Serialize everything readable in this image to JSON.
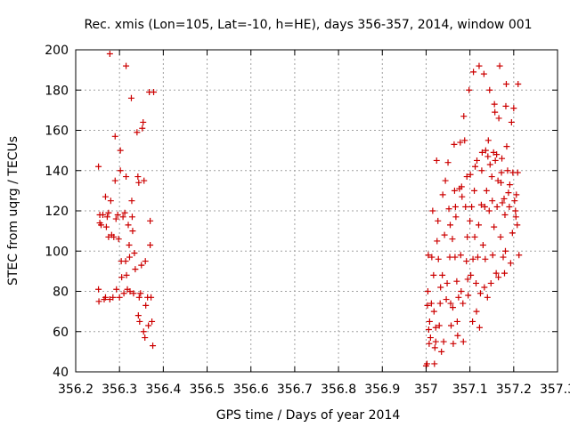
{
  "chart_data": {
    "type": "scatter",
    "title": "Rec. xmis (Lon=105, Lat=-10, h=HE), days 356-357, 2014, window 001",
    "xlabel": "GPS time / Days of year 2014",
    "ylabel": "STEC from uqrg / TECUs",
    "xlim": [
      356.2,
      357.3
    ],
    "ylim": [
      40,
      200
    ],
    "xticks": [
      356.2,
      356.3,
      356.4,
      356.5,
      356.6,
      356.7,
      356.8,
      356.9,
      357,
      357.1,
      357.2,
      357.3
    ],
    "xtick_labels": [
      "356.2",
      "356.3",
      "356.4",
      "356.5",
      "356.6",
      "356.7",
      "356.8",
      "356.9",
      "357",
      "357.1",
      "357.2",
      "357.3"
    ],
    "yticks": [
      40,
      60,
      80,
      100,
      120,
      140,
      160,
      180,
      200
    ],
    "ytick_labels": [
      "40",
      "60",
      "80",
      "100",
      "120",
      "140",
      "160",
      "180",
      "200"
    ],
    "grid": true,
    "marker": "+",
    "color": "#cc0000",
    "series": [
      {
        "points": [
          [
            356.252,
            142
          ],
          [
            356.252,
            81
          ],
          [
            356.253,
            75
          ],
          [
            356.255,
            118
          ],
          [
            356.255,
            114
          ],
          [
            356.258,
            113
          ],
          [
            356.262,
            118
          ],
          [
            356.265,
            76
          ],
          [
            356.268,
            77
          ],
          [
            356.268,
            127
          ],
          [
            356.27,
            112
          ],
          [
            356.272,
            117
          ],
          [
            356.275,
            119
          ],
          [
            356.275,
            107
          ],
          [
            356.278,
            198
          ],
          [
            356.278,
            76
          ],
          [
            356.28,
            125
          ],
          [
            356.282,
            108
          ],
          [
            356.285,
            77
          ],
          [
            356.287,
            107
          ],
          [
            356.29,
            157
          ],
          [
            356.29,
            135
          ],
          [
            356.292,
            116
          ],
          [
            356.293,
            81
          ],
          [
            356.296,
            118
          ],
          [
            356.298,
            106
          ],
          [
            356.3,
            77
          ],
          [
            356.302,
            150
          ],
          [
            356.302,
            140
          ],
          [
            356.304,
            95
          ],
          [
            356.305,
            87
          ],
          [
            356.308,
            117
          ],
          [
            356.31,
            79
          ],
          [
            356.312,
            119
          ],
          [
            356.314,
            95
          ],
          [
            356.315,
            192
          ],
          [
            356.315,
            137
          ],
          [
            356.316,
            88
          ],
          [
            356.318,
            81
          ],
          [
            356.32,
            113
          ],
          [
            356.322,
            103
          ],
          [
            356.323,
            97
          ],
          [
            356.324,
            80
          ],
          [
            356.327,
            176
          ],
          [
            356.328,
            125
          ],
          [
            356.329,
            117
          ],
          [
            356.33,
            110
          ],
          [
            356.332,
            79
          ],
          [
            356.334,
            99
          ],
          [
            356.336,
            91
          ],
          [
            356.34,
            159
          ],
          [
            356.342,
            137
          ],
          [
            356.343,
            68
          ],
          [
            356.344,
            134
          ],
          [
            356.345,
            77
          ],
          [
            356.346,
            65
          ],
          [
            356.348,
            79
          ],
          [
            356.35,
            93
          ],
          [
            356.352,
            161
          ],
          [
            356.354,
            164
          ],
          [
            356.355,
            60
          ],
          [
            356.356,
            135
          ],
          [
            356.358,
            57
          ],
          [
            356.359,
            95
          ],
          [
            356.36,
            73
          ],
          [
            356.364,
            77
          ],
          [
            356.366,
            63
          ],
          [
            356.368,
            179
          ],
          [
            356.37,
            115
          ],
          [
            356.37,
            103
          ],
          [
            356.372,
            77
          ],
          [
            356.374,
            65
          ],
          [
            356.376,
            53
          ],
          [
            356.378,
            179
          ],
          [
            357.0,
            43
          ],
          [
            357.002,
            44
          ],
          [
            357.003,
            73
          ],
          [
            357.004,
            80
          ],
          [
            357.005,
            98
          ],
          [
            357.006,
            61
          ],
          [
            357.007,
            54
          ],
          [
            357.008,
            65
          ],
          [
            357.01,
            57
          ],
          [
            357.012,
            74
          ],
          [
            357.013,
            97
          ],
          [
            357.015,
            120
          ],
          [
            357.017,
            88
          ],
          [
            357.018,
            70
          ],
          [
            357.019,
            44
          ],
          [
            357.02,
            52
          ],
          [
            357.022,
            55
          ],
          [
            357.022,
            62
          ],
          [
            357.024,
            145
          ],
          [
            357.025,
            105
          ],
          [
            357.027,
            115
          ],
          [
            357.028,
            96
          ],
          [
            357.03,
            63
          ],
          [
            357.032,
            74
          ],
          [
            357.033,
            82
          ],
          [
            357.035,
            50
          ],
          [
            357.037,
            88
          ],
          [
            357.038,
            128
          ],
          [
            357.04,
            55
          ],
          [
            357.042,
            108
          ],
          [
            357.044,
            135
          ],
          [
            357.046,
            76
          ],
          [
            357.048,
            84
          ],
          [
            357.05,
            144
          ],
          [
            357.052,
            121
          ],
          [
            357.054,
            97
          ],
          [
            357.055,
            113
          ],
          [
            357.056,
            74
          ],
          [
            357.057,
            63
          ],
          [
            357.06,
            106
          ],
          [
            357.061,
            72
          ],
          [
            357.062,
            54
          ],
          [
            357.064,
            153
          ],
          [
            357.065,
            130
          ],
          [
            357.066,
            97
          ],
          [
            357.067,
            122
          ],
          [
            357.068,
            117
          ],
          [
            357.07,
            85
          ],
          [
            357.071,
            65
          ],
          [
            357.072,
            58
          ],
          [
            357.074,
            77
          ],
          [
            357.076,
            131
          ],
          [
            357.078,
            154
          ],
          [
            357.079,
            98
          ],
          [
            357.08,
            80
          ],
          [
            357.081,
            132
          ],
          [
            357.082,
            127
          ],
          [
            357.084,
            74
          ],
          [
            357.085,
            55
          ],
          [
            357.086,
            167
          ],
          [
            357.088,
            155
          ],
          [
            357.09,
            122
          ],
          [
            357.092,
            95
          ],
          [
            357.093,
            137
          ],
          [
            357.094,
            107
          ],
          [
            357.095,
            86
          ],
          [
            357.096,
            78
          ],
          [
            357.098,
            180
          ],
          [
            357.1,
            115
          ],
          [
            357.101,
            138
          ],
          [
            357.102,
            88
          ],
          [
            357.104,
            122
          ],
          [
            357.106,
            65
          ],
          [
            357.107,
            96
          ],
          [
            357.108,
            189
          ],
          [
            357.11,
            130
          ],
          [
            357.111,
            107
          ],
          [
            357.112,
            142
          ],
          [
            357.114,
            84
          ],
          [
            357.115,
            70
          ],
          [
            357.116,
            145
          ],
          [
            357.118,
            97
          ],
          [
            357.12,
            113
          ],
          [
            357.121,
            192
          ],
          [
            357.122,
            62
          ],
          [
            357.124,
            79
          ],
          [
            357.126,
            123
          ],
          [
            357.127,
            140
          ],
          [
            357.128,
            149
          ],
          [
            357.13,
            103
          ],
          [
            357.132,
            188
          ],
          [
            357.133,
            82
          ],
          [
            357.134,
            122
          ],
          [
            357.135,
            96
          ],
          [
            357.136,
            150
          ],
          [
            357.138,
            130
          ],
          [
            357.14,
            77
          ],
          [
            357.141,
            147
          ],
          [
            357.142,
            155
          ],
          [
            357.144,
            120
          ],
          [
            357.145,
            180
          ],
          [
            357.146,
            143
          ],
          [
            357.148,
            84
          ],
          [
            357.15,
            137
          ],
          [
            357.151,
            125
          ],
          [
            357.152,
            98
          ],
          [
            357.154,
            149
          ],
          [
            357.155,
            112
          ],
          [
            357.156,
            173
          ],
          [
            357.157,
            169
          ],
          [
            357.158,
            145
          ],
          [
            357.16,
            89
          ],
          [
            357.161,
            148
          ],
          [
            357.162,
            122
          ],
          [
            357.164,
            135
          ],
          [
            357.165,
            87
          ],
          [
            357.166,
            166
          ],
          [
            357.168,
            192
          ],
          [
            357.17,
            107
          ],
          [
            357.171,
            134
          ],
          [
            357.172,
            139
          ],
          [
            357.173,
            146
          ],
          [
            357.174,
            124
          ],
          [
            357.176,
            97
          ],
          [
            357.178,
            126
          ],
          [
            357.179,
            89
          ],
          [
            357.18,
            118
          ],
          [
            357.181,
            100
          ],
          [
            357.182,
            172
          ],
          [
            357.183,
            183
          ],
          [
            357.184,
            152
          ],
          [
            357.186,
            140
          ],
          [
            357.188,
            129
          ],
          [
            357.19,
            122
          ],
          [
            357.191,
            133
          ],
          [
            357.193,
            94
          ],
          [
            357.195,
            164
          ],
          [
            357.197,
            109
          ],
          [
            357.198,
            139
          ],
          [
            357.2,
            171
          ],
          [
            357.202,
            125
          ],
          [
            357.204,
            120
          ],
          [
            357.205,
            117
          ],
          [
            357.206,
            128
          ],
          [
            357.208,
            113
          ],
          [
            357.209,
            139
          ],
          [
            357.21,
            183
          ],
          [
            357.212,
            98
          ]
        ]
      }
    ]
  }
}
